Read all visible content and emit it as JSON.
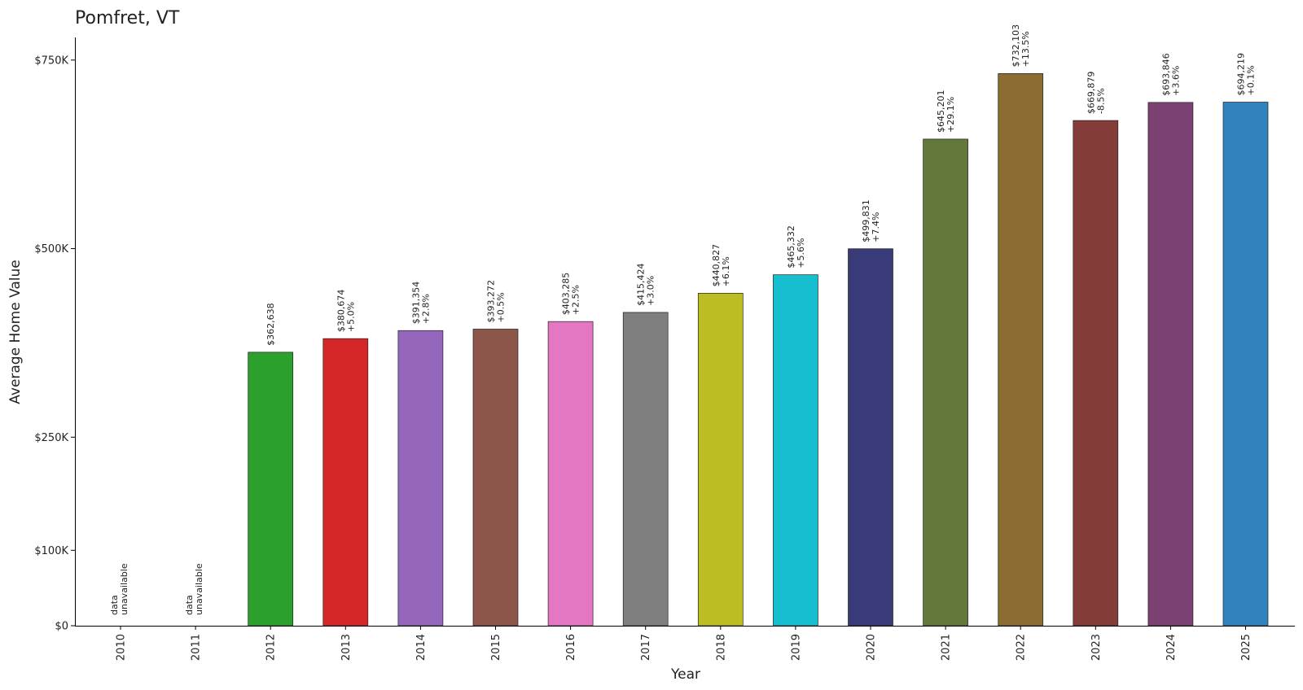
{
  "chart_data": {
    "type": "bar",
    "title": "Pomfret, VT",
    "xlabel": "Year",
    "ylabel": "Average Home Value",
    "ylim": [
      0,
      780000
    ],
    "yticks": [
      {
        "value": 0,
        "label": "$0"
      },
      {
        "value": 100000,
        "label": "$100K"
      },
      {
        "value": 250000,
        "label": "$250K"
      },
      {
        "value": 500000,
        "label": "$500K"
      },
      {
        "value": 750000,
        "label": "$750K"
      }
    ],
    "grid": false,
    "legend": "none",
    "categories": [
      "2010",
      "2011",
      "2012",
      "2013",
      "2014",
      "2015",
      "2016",
      "2017",
      "2018",
      "2019",
      "2020",
      "2021",
      "2022",
      "2023",
      "2024",
      "2025"
    ],
    "values": [
      null,
      null,
      362638,
      380674,
      391354,
      393272,
      403285,
      415424,
      440827,
      465332,
      499831,
      645201,
      732103,
      669879,
      693846,
      694219
    ],
    "value_labels": [
      null,
      null,
      "$362,638",
      "$380,674",
      "$391,354",
      "$393,272",
      "$403,285",
      "$415,424",
      "$440,827",
      "$465,332",
      "$499,831",
      "$645,201",
      "$732,103",
      "$669,879",
      "$693,846",
      "$694,219"
    ],
    "change_labels": [
      null,
      null,
      null,
      "+5.0%",
      "+2.8%",
      "+0.5%",
      "+2.5%",
      "+3.0%",
      "+6.1%",
      "+5.6%",
      "+7.4%",
      "+29.1%",
      "+13.5%",
      "-8.5%",
      "+3.6%",
      "+0.1%"
    ],
    "unavailable_label": [
      "data",
      "unavailable"
    ],
    "colors": [
      "#2ca02c",
      "#2ca02c",
      "#2ca02c",
      "#d62728",
      "#9467bd",
      "#8c564b",
      "#e377c2",
      "#7f7f7f",
      "#bcbd22",
      "#17becf",
      "#393b79",
      "#637939",
      "#8c6d31",
      "#843c39",
      "#7b4173",
      "#3182bd"
    ]
  }
}
